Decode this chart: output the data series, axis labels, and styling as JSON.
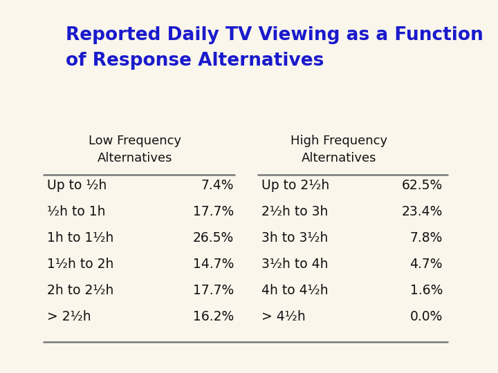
{
  "title_line1": "Reported Daily TV Viewing as a Function",
  "title_line2": "of Response Alternatives",
  "title_color": "#1a1acc",
  "bg_color": "#faf6ec",
  "low_freq_header": [
    "Low Frequency",
    "Alternatives"
  ],
  "high_freq_header": [
    "High Frequency",
    "Alternatives"
  ],
  "low_freq_rows": [
    [
      "Up to ¹⁄₂h",
      "7.4%"
    ],
    [
      "¹⁄₂h to 1h",
      "17.7%"
    ],
    [
      "1h to 1¹⁄₂h",
      "26.5%"
    ],
    [
      "1¹⁄₂h to 2h",
      "14.7%"
    ],
    [
      "2h to 2¹⁄₂h",
      "17.7%"
    ],
    [
      "> 2¹⁄₂h",
      "16.2%"
    ]
  ],
  "high_freq_rows": [
    [
      "Up to 2¹⁄₂h",
      "62.5%"
    ],
    [
      "2¹⁄₂h to 3h",
      "23.4%"
    ],
    [
      "3h to 3¹⁄₂h",
      "7.8%"
    ],
    [
      "3¹⁄₂h to 4h",
      "4.7%"
    ],
    [
      "4h to 4¹⁄₂h",
      "1.6%"
    ],
    [
      "> 4¹⁄₂h",
      "0.0%"
    ]
  ],
  "text_color": "#111111",
  "line_color": "#777777",
  "font_size_title": 19,
  "font_size_header": 13,
  "font_size_data": 13.5
}
